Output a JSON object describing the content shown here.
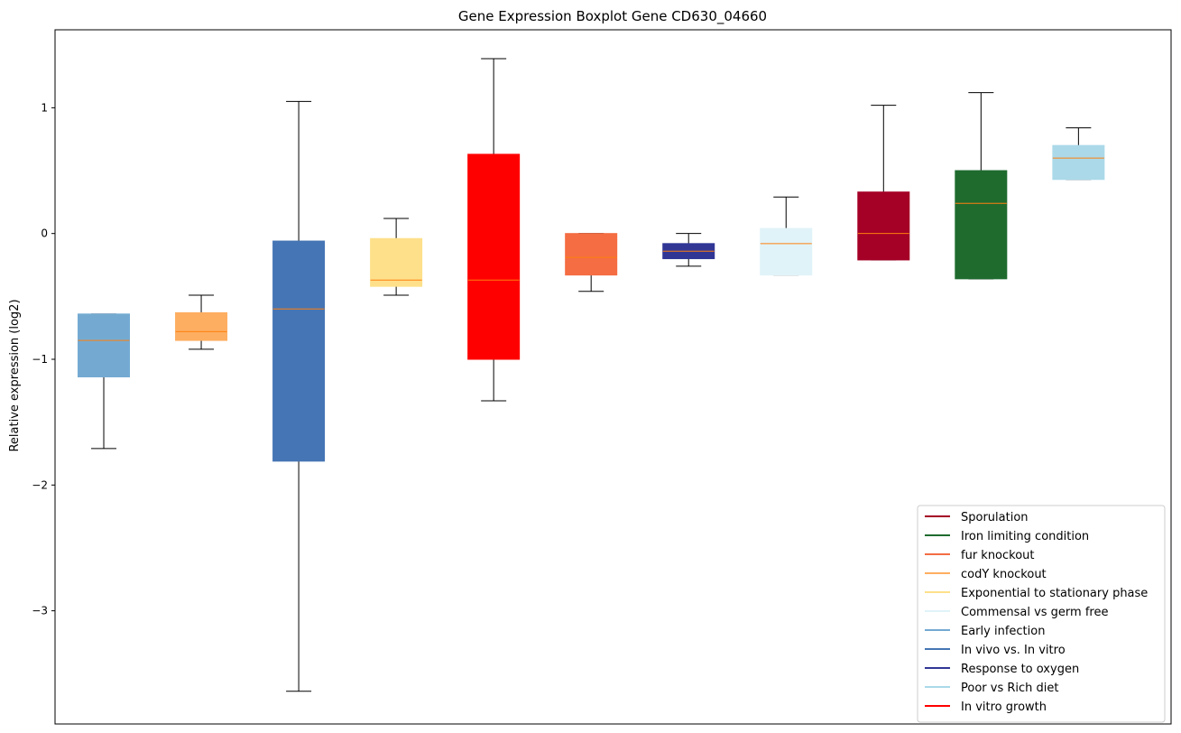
{
  "chart_data": {
    "type": "boxplot",
    "title": "Gene Expression Boxplot Gene CD630_04660",
    "ylabel": "Relative expression (log2)",
    "xlabel": "",
    "ylim": [
      -3.9,
      1.62
    ],
    "yticks": [
      1,
      0,
      -1,
      -2,
      -3
    ],
    "ytick_labels": [
      "1",
      "0",
      "−1",
      "−2",
      "−3"
    ],
    "grid": false,
    "legend_position": "lower-right",
    "boxes": [
      {
        "name": "Early infection",
        "color": "#74aad2",
        "whisker_low": -1.71,
        "q1": -1.14,
        "median": -0.85,
        "q3": -0.64,
        "whisker_high": -0.64
      },
      {
        "name": "codY knockout",
        "color": "#fdae61",
        "whisker_low": -0.92,
        "q1": -0.85,
        "median": -0.78,
        "q3": -0.63,
        "whisker_high": -0.49
      },
      {
        "name": "In vivo vs. In vitro",
        "color": "#4575b4",
        "whisker_low": -3.64,
        "q1": -1.81,
        "median": -0.6,
        "q3": -0.06,
        "whisker_high": 1.05
      },
      {
        "name": "Exponential to stationary phase",
        "color": "#fee08b",
        "whisker_low": -0.49,
        "q1": -0.42,
        "median": -0.37,
        "q3": -0.04,
        "whisker_high": 0.12
      },
      {
        "name": "In vitro growth",
        "color": "#ff0000",
        "whisker_low": -1.33,
        "q1": -1.0,
        "median": -0.37,
        "q3": 0.63,
        "whisker_high": 1.39
      },
      {
        "name": "fur knockout",
        "color": "#f46d43",
        "whisker_low": -0.46,
        "q1": -0.33,
        "median": -0.19,
        "q3": 0.0,
        "whisker_high": 0.0
      },
      {
        "name": "Response to oxygen",
        "color": "#313695",
        "whisker_low": -0.26,
        "q1": -0.2,
        "median": -0.14,
        "q3": -0.08,
        "whisker_high": 0.0
      },
      {
        "name": "Commensal vs germ free",
        "color": "#e0f3f8",
        "whisker_low": -0.33,
        "q1": -0.33,
        "median": -0.08,
        "q3": 0.04,
        "whisker_high": 0.29
      },
      {
        "name": "Sporulation",
        "color": "#a50026",
        "whisker_low": -0.21,
        "q1": -0.21,
        "median": 0.0,
        "q3": 0.33,
        "whisker_high": 1.02
      },
      {
        "name": "Iron limiting condition",
        "color": "#1f6b2e",
        "whisker_low": -0.36,
        "q1": -0.36,
        "median": 0.24,
        "q3": 0.5,
        "whisker_high": 1.12
      },
      {
        "name": "Poor vs Rich diet",
        "color": "#abd9e9",
        "whisker_low": 0.43,
        "q1": 0.43,
        "median": 0.6,
        "q3": 0.7,
        "whisker_high": 0.84
      }
    ],
    "median_color": "#ff7f0e",
    "legend": [
      {
        "label": "Sporulation",
        "color": "#a50026"
      },
      {
        "label": "Iron limiting condition",
        "color": "#1f6b2e"
      },
      {
        "label": "fur knockout",
        "color": "#f46d43"
      },
      {
        "label": "codY knockout",
        "color": "#fdae61"
      },
      {
        "label": "Exponential to stationary phase",
        "color": "#fee08b"
      },
      {
        "label": "Commensal vs germ free",
        "color": "#e0f3f8"
      },
      {
        "label": "Early infection",
        "color": "#74aad2"
      },
      {
        "label": "In vivo vs. In vitro",
        "color": "#4575b4"
      },
      {
        "label": "Response to oxygen",
        "color": "#313695"
      },
      {
        "label": "Poor vs Rich diet",
        "color": "#abd9e9"
      },
      {
        "label": "In vitro growth",
        "color": "#ff0000"
      }
    ]
  }
}
